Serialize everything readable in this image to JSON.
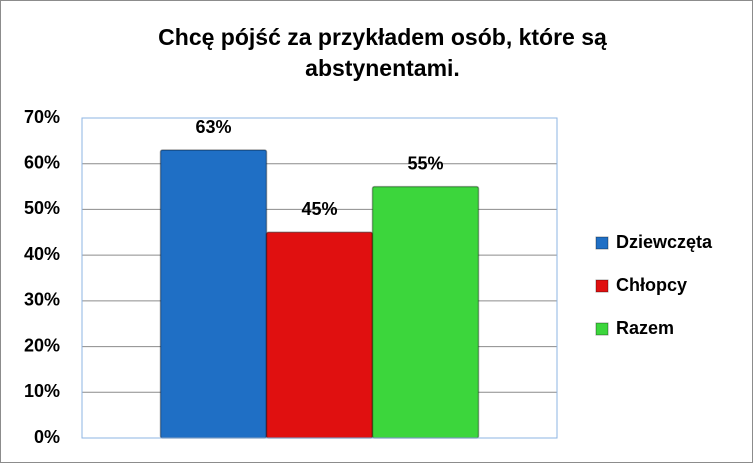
{
  "chart_data": {
    "type": "bar",
    "title": "Chcę pójść za przykładem osób, które są abstynentami.",
    "categories": [
      null
    ],
    "series": [
      {
        "name": "Dziewczęta",
        "color": "#1f6fc5",
        "values": [
          63
        ],
        "value_labels": [
          "63%"
        ]
      },
      {
        "name": "Chłopcy",
        "color": "#e01010",
        "values": [
          45
        ],
        "value_labels": [
          "45%"
        ]
      },
      {
        "name": "Razem",
        "color": "#3cd63c",
        "values": [
          55
        ],
        "value_labels": [
          "55%"
        ]
      }
    ],
    "ylim": [
      0,
      70
    ],
    "yticks": [
      {
        "value": 0,
        "label": "0%"
      },
      {
        "value": 10,
        "label": "10%"
      },
      {
        "value": 20,
        "label": "20%"
      },
      {
        "value": 30,
        "label": "30%"
      },
      {
        "value": 40,
        "label": "40%"
      },
      {
        "value": 50,
        "label": "50%"
      },
      {
        "value": 60,
        "label": "60%"
      },
      {
        "value": 70,
        "label": "70%"
      }
    ],
    "grid": true,
    "legend": "right"
  }
}
